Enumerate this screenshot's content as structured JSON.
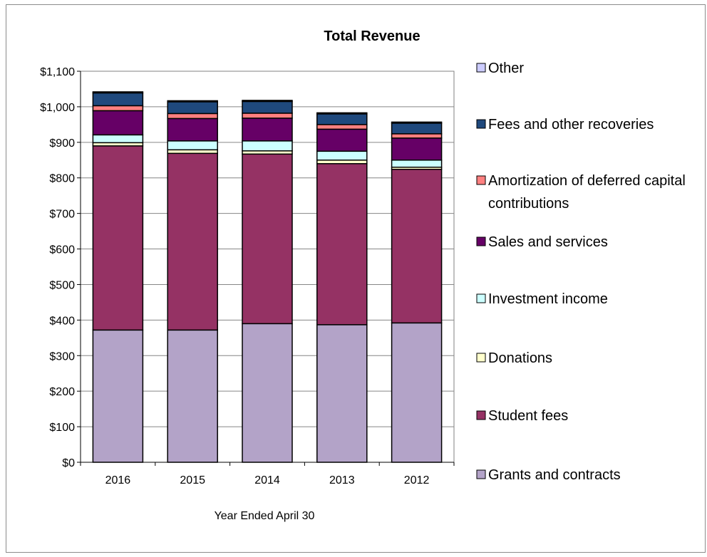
{
  "chart_data": {
    "type": "bar",
    "stacked": true,
    "title": "Total Revenue",
    "xlabel": "Year Ended April 30",
    "ylabel": "",
    "ylim": [
      0,
      1100
    ],
    "ytick_step": 100,
    "ytick_labels": [
      "$0",
      "$100",
      "$200",
      "$300",
      "$400",
      "$500",
      "$600",
      "$700",
      "$800",
      "$900",
      "$1,000",
      "$1,100"
    ],
    "categories": [
      "2016",
      "2015",
      "2014",
      "2013",
      "2012"
    ],
    "grid": true,
    "legend_position": "right",
    "series": [
      {
        "name": "Grants and contracts",
        "color": "#b3a3c8",
        "values": [
          372,
          372,
          390,
          387,
          392
        ]
      },
      {
        "name": "Student fees",
        "color": "#953264",
        "values": [
          518,
          497,
          477,
          453,
          432
        ]
      },
      {
        "name": "Donations",
        "color": "#ffffcc",
        "values": [
          9,
          10,
          9,
          10,
          6
        ]
      },
      {
        "name": "Investment income",
        "color": "#ccffff",
        "values": [
          22,
          25,
          28,
          25,
          20
        ]
      },
      {
        "name": "Sales and services",
        "color": "#660066",
        "values": [
          68,
          63,
          64,
          62,
          62
        ]
      },
      {
        "name": "Amortization of deferred capital contributions",
        "color": "#ff8080",
        "values": [
          14,
          14,
          14,
          13,
          12
        ]
      },
      {
        "name": "Fees and other recoveries",
        "color": "#1f497d",
        "values": [
          36,
          33,
          33,
          30,
          30
        ]
      },
      {
        "name": "Other",
        "color": "#ccccff",
        "values": [
          3,
          3,
          3,
          3,
          3
        ]
      }
    ]
  }
}
